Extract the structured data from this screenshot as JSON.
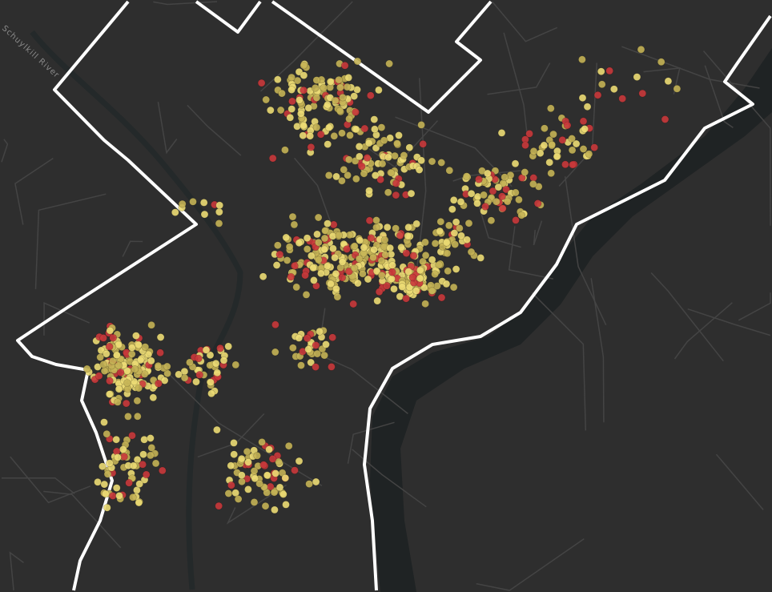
{
  "map": {
    "labels": {
      "river": "Schuylkill River"
    },
    "colors": {
      "background": "#2e2e2e",
      "water": "#1f2324",
      "roads": "#444444",
      "boundary": "#ffffff",
      "point_yellow": "#ecdc74",
      "point_olive": "#c4b255",
      "point_red": "#c9393b"
    },
    "layers": [
      "basemap-dark",
      "city-boundary",
      "incident-points"
    ]
  }
}
